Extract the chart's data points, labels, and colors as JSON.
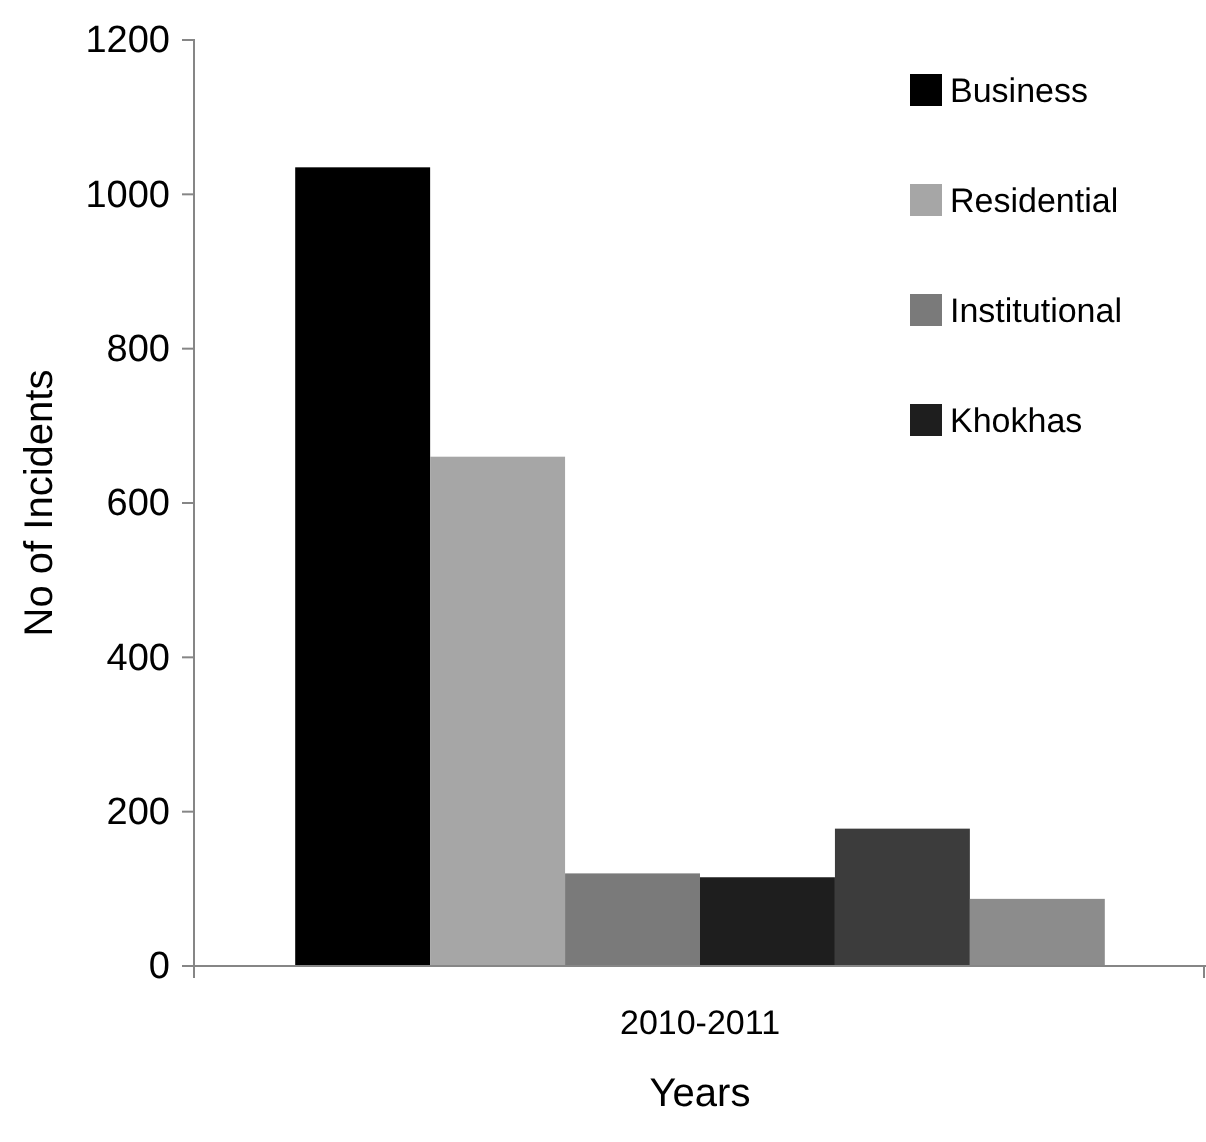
{
  "chart_data": {
    "type": "bar",
    "xlabel": "Years",
    "ylabel": "No of Incidents",
    "categories": [
      "2010-2011"
    ],
    "series": [
      {
        "name": "Business",
        "color": "#000000",
        "values": [
          1035
        ]
      },
      {
        "name": "Residential",
        "color": "#a6a6a6",
        "values": [
          660
        ]
      },
      {
        "name": "Institutional",
        "color": "#7a7a7a",
        "values": [
          120
        ]
      },
      {
        "name": "Khokhas",
        "color": "#1e1e1e",
        "values": [
          115
        ]
      },
      {
        "color": "#3c3c3c",
        "values": [
          178
        ]
      },
      {
        "color": "#8c8c8c",
        "values": [
          87
        ]
      }
    ],
    "ylim": [
      0,
      1200
    ],
    "yticks": [
      0,
      200,
      400,
      600,
      800,
      1000,
      1200
    ],
    "grid": false,
    "legend": "top right"
  }
}
